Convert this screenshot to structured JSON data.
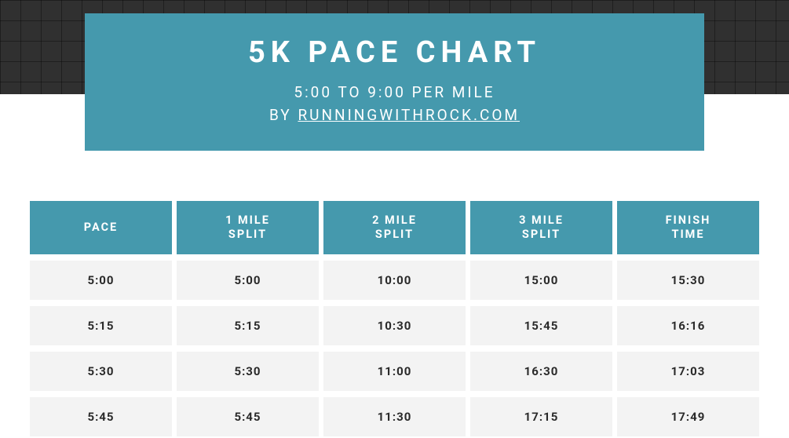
{
  "colors": {
    "teal": "#4599ad",
    "row_bg": "#f3f3f3",
    "dark_band": "#303030",
    "page_bg": "#ffffff",
    "text_dark": "#2a2a2a",
    "text_light": "#ffffff"
  },
  "hero": {
    "title": "5K PACE CHART",
    "subtitle_line1": "5:00 TO 9:00 PER MILE",
    "subtitle_prefix": "BY ",
    "subtitle_link": "RUNNINGWITHROCK.COM"
  },
  "table": {
    "type": "table",
    "columns": [
      "PACE",
      "1 MILE\nSPLIT",
      "2 MILE\nSPLIT",
      "3 MILE\nSPLIT",
      "FINISH\nTIME"
    ],
    "rows": [
      [
        "5:00",
        "5:00",
        "10:00",
        "15:00",
        "15:30"
      ],
      [
        "5:15",
        "5:15",
        "10:30",
        "15:45",
        "16:16"
      ],
      [
        "5:30",
        "5:30",
        "11:00",
        "16:30",
        "17:03"
      ],
      [
        "5:45",
        "5:45",
        "11:30",
        "17:15",
        "17:49"
      ]
    ],
    "header_bg": "#4599ad",
    "header_color": "#ffffff",
    "row_bg": "#f3f3f3",
    "cell_fontsize": 15,
    "header_fontsize": 14.5,
    "gap": 6
  }
}
